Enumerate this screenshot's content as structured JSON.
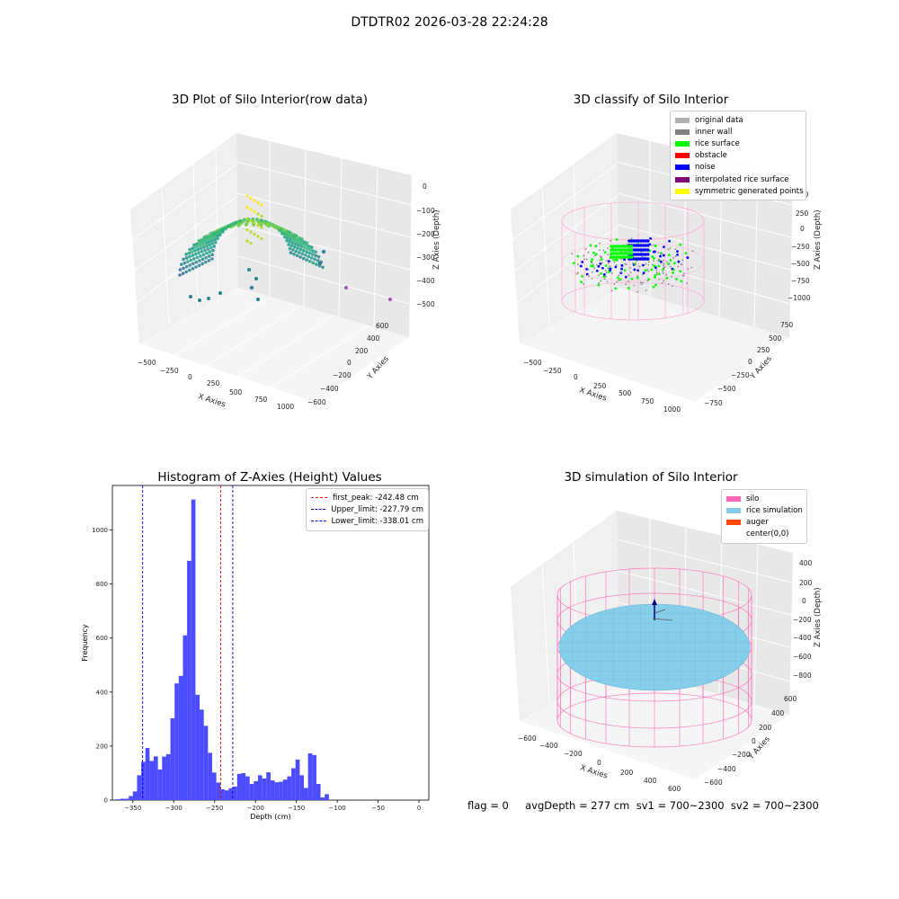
{
  "page_title": "DTDTR02 2026-03-28 22:24:28",
  "footer_status": "flag = 0     avgDepth = 277 cm  sv1 = 700~2300  sv2 = 700~2300",
  "chart_data": [
    {
      "type": "scatter3d",
      "title": "3D Plot of Silo Interior(row data)",
      "xlabel": "X Axies",
      "ylabel": "Y Axies",
      "zlabel": "Z Axies (Depth)",
      "x_ticks": [
        "−500",
        "−250",
        "0",
        "250",
        "500",
        "750",
        "1000"
      ],
      "y_ticks": [
        "600",
        "400",
        "200",
        "0",
        "−200",
        "−400",
        "−600"
      ],
      "z_ticks": [
        "0",
        "−100",
        "−200",
        "−300",
        "−400",
        "−500"
      ],
      "colormap": "viridis",
      "grid": true
    },
    {
      "type": "scatter3d",
      "title": "3D classify of Silo Interior",
      "xlabel": "X Axies",
      "ylabel": "Y Axies",
      "zlabel": "Z Axies (Depth)",
      "x_ticks": [
        "−500",
        "−250",
        "0",
        "250",
        "500",
        "750",
        "1000"
      ],
      "y_ticks": [
        "750",
        "500",
        "250",
        "0",
        "−250",
        "−500",
        "−750"
      ],
      "z_ticks": [
        "500",
        "250",
        "0",
        "−250",
        "−500",
        "−750",
        "−1000"
      ],
      "legend": [
        {
          "label": "original data",
          "color": "#b0b0b0"
        },
        {
          "label": "inner wall",
          "color": "#808080"
        },
        {
          "label": "rice surface",
          "color": "#00ff00"
        },
        {
          "label": "obstacle",
          "color": "#ff0000"
        },
        {
          "label": "noise",
          "color": "#0000ff"
        },
        {
          "label": "interpolated rice surface",
          "color": "#800080"
        },
        {
          "label": "symmetric generated points",
          "color": "#ffff00"
        }
      ],
      "legend_placement": "top-right",
      "grid": true
    },
    {
      "type": "bar",
      "title": "Histogram of Z-Axies (Height) Values",
      "xlabel": "Depth (cm)",
      "ylabel": "Frequency",
      "xlim": [
        -375,
        12
      ],
      "ylim": [
        0,
        1165
      ],
      "x_ticks": [
        -350,
        -300,
        -250,
        -200,
        -150,
        -100,
        -50,
        0
      ],
      "y_ticks": [
        0,
        200,
        400,
        600,
        800,
        1000
      ],
      "bar_color": "#4b4bff",
      "bin_width": 5.1,
      "bins": [
        {
          "x": -370.3,
          "value": 3
        },
        {
          "x": -365.2,
          "value": 5
        },
        {
          "x": -360.1,
          "value": 5
        },
        {
          "x": -355.0,
          "value": 15
        },
        {
          "x": -349.9,
          "value": 32
        },
        {
          "x": -344.8,
          "value": 92
        },
        {
          "x": -339.7,
          "value": 142
        },
        {
          "x": -334.6,
          "value": 193
        },
        {
          "x": -329.5,
          "value": 145
        },
        {
          "x": -324.4,
          "value": 162
        },
        {
          "x": -319.3,
          "value": 113
        },
        {
          "x": -314.2,
          "value": 161
        },
        {
          "x": -309.1,
          "value": 170
        },
        {
          "x": -304.0,
          "value": 303
        },
        {
          "x": -298.9,
          "value": 432
        },
        {
          "x": -293.8,
          "value": 460
        },
        {
          "x": -288.7,
          "value": 610
        },
        {
          "x": -283.6,
          "value": 886
        },
        {
          "x": -278.5,
          "value": 1113
        },
        {
          "x": -273.4,
          "value": 390
        },
        {
          "x": -268.3,
          "value": 335
        },
        {
          "x": -263.2,
          "value": 275
        },
        {
          "x": -258.1,
          "value": 175
        },
        {
          "x": -253.0,
          "value": 102
        },
        {
          "x": -247.9,
          "value": 65
        },
        {
          "x": -242.8,
          "value": 40
        },
        {
          "x": -237.7,
          "value": 36
        },
        {
          "x": -232.6,
          "value": 44
        },
        {
          "x": -227.5,
          "value": 50
        },
        {
          "x": -222.4,
          "value": 97
        },
        {
          "x": -217.3,
          "value": 100
        },
        {
          "x": -212.2,
          "value": 88
        },
        {
          "x": -207.1,
          "value": 60
        },
        {
          "x": -202.0,
          "value": 70
        },
        {
          "x": -196.9,
          "value": 92
        },
        {
          "x": -191.8,
          "value": 80
        },
        {
          "x": -186.7,
          "value": 103
        },
        {
          "x": -181.6,
          "value": 73
        },
        {
          "x": -176.5,
          "value": 66
        },
        {
          "x": -171.4,
          "value": 68
        },
        {
          "x": -166.3,
          "value": 76
        },
        {
          "x": -161.2,
          "value": 88
        },
        {
          "x": -156.1,
          "value": 118
        },
        {
          "x": -151.0,
          "value": 150
        },
        {
          "x": -145.9,
          "value": 92
        },
        {
          "x": -140.8,
          "value": 45
        },
        {
          "x": -135.7,
          "value": 173
        },
        {
          "x": -130.6,
          "value": 167
        },
        {
          "x": -125.5,
          "value": 60
        },
        {
          "x": -120.4,
          "value": 10
        },
        {
          "x": -115.3,
          "value": 22
        }
      ],
      "vlines": [
        {
          "label": "first_peak: -242.48 cm",
          "x": -242.48,
          "color": "#ff0000"
        },
        {
          "label": "Upper_limit: -227.79 cm",
          "x": -227.79,
          "color": "#0000cc"
        },
        {
          "label": "Lower_limit: -338.01 cm",
          "x": -338.01,
          "color": "#0000cc"
        }
      ],
      "legend_placement": "top-right",
      "grid": false
    },
    {
      "type": "surface3d",
      "title": "3D simulation of Silo Interior",
      "xlabel": "X Axies",
      "ylabel": "Y Axies",
      "zlabel": "Z Axies (Depth)",
      "x_ticks": [
        "−600",
        "−400",
        "−200",
        "0",
        "200",
        "400",
        "600"
      ],
      "y_ticks": [
        "600",
        "400",
        "200",
        "0",
        "−200",
        "−400",
        "−600"
      ],
      "z_ticks": [
        "400",
        "200",
        "0",
        "−200",
        "−400",
        "−600",
        "−800"
      ],
      "legend": [
        {
          "label": "silo",
          "color": "#ff69b4"
        },
        {
          "label": "rice simulation",
          "color": "#87ceeb"
        },
        {
          "label": "auger",
          "color": "#ff4500"
        },
        {
          "label": "center(0,0)",
          "color": "#ffffff"
        }
      ],
      "legend_placement": "top-right",
      "grid": true
    }
  ]
}
